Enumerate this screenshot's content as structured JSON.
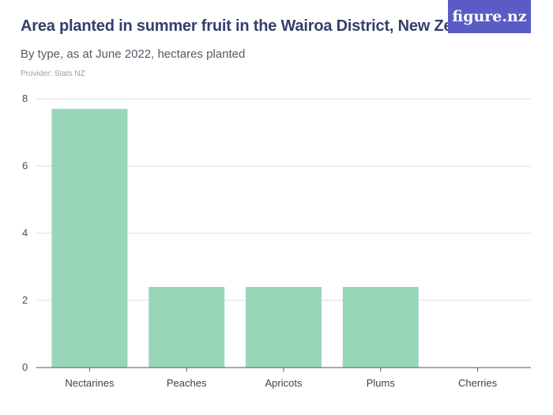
{
  "header": {
    "title": "Area planted in summer fruit in the Wairoa District, New Zealand",
    "subtitle": "By type, as at June 2022, hectares planted",
    "provider": "Provider: Stats NZ",
    "logo_text": "figure.nz"
  },
  "colors": {
    "bar": "#98d6b9",
    "grid": "#dcdcdc",
    "axis": "#555555",
    "logo_bg": "#5a5bc4"
  },
  "chart_data": {
    "type": "bar",
    "title": "Area planted in summer fruit in the Wairoa District, New Zealand",
    "subtitle": "By type, as at June 2022, hectares planted",
    "xlabel": "",
    "ylabel": "",
    "categories": [
      "Nectarines",
      "Peaches",
      "Apricots",
      "Plums",
      "Cherries"
    ],
    "values": [
      7.7,
      2.4,
      2.4,
      2.4,
      0
    ],
    "ylim": [
      0,
      8
    ],
    "yticks": [
      0,
      2,
      4,
      6,
      8
    ],
    "grid": true,
    "legend": "none"
  }
}
